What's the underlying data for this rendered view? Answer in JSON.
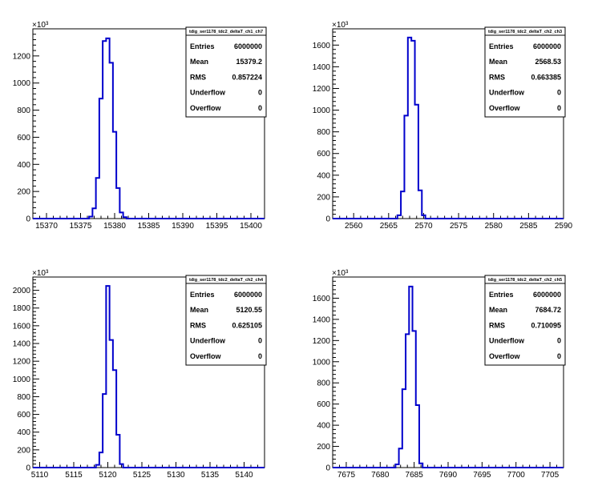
{
  "chart_data": [
    {
      "type": "histogram",
      "title": "tdig_ser1178_tdc2_deltaT_ch1_ch7",
      "xlim": [
        15368,
        15402
      ],
      "ylim": [
        0,
        1400000
      ],
      "x_ticks": [
        15370,
        15375,
        15380,
        15385,
        15390,
        15395,
        15400
      ],
      "y_ticks": [
        0,
        200,
        400,
        600,
        800,
        1000,
        1200
      ],
      "y_multiplier_label": "×10³",
      "bin_width": 0.5,
      "bins": [
        {
          "x": 15376.5,
          "y": 15000
        },
        {
          "x": 15377.0,
          "y": 75000
        },
        {
          "x": 15377.5,
          "y": 300000
        },
        {
          "x": 15378.0,
          "y": 885000
        },
        {
          "x": 15378.5,
          "y": 1310000
        },
        {
          "x": 15379.0,
          "y": 1330000
        },
        {
          "x": 15379.5,
          "y": 1150000
        },
        {
          "x": 15380.0,
          "y": 640000
        },
        {
          "x": 15380.5,
          "y": 225000
        },
        {
          "x": 15381.0,
          "y": 45000
        },
        {
          "x": 15381.5,
          "y": 10000
        }
      ],
      "stats": [
        {
          "label": "Entries",
          "value": "6000000"
        },
        {
          "label": "Mean",
          "value": "15379.2"
        },
        {
          "label": "RMS",
          "value": "0.857224"
        },
        {
          "label": "Underflow",
          "value": "0"
        },
        {
          "label": "Overflow",
          "value": "0"
        }
      ]
    },
    {
      "type": "histogram",
      "title": "tdig_ser1178_tdc2_deltaT_ch2_ch3",
      "xlim": [
        2557,
        2590
      ],
      "ylim": [
        0,
        1750000
      ],
      "x_ticks": [
        2560,
        2565,
        2570,
        2575,
        2580,
        2585,
        2590
      ],
      "y_ticks": [
        0,
        200,
        400,
        600,
        800,
        1000,
        1200,
        1400,
        1600
      ],
      "y_multiplier_label": "×10³",
      "bin_width": 0.5,
      "bins": [
        {
          "x": 2566.5,
          "y": 30000
        },
        {
          "x": 2567.0,
          "y": 250000
        },
        {
          "x": 2567.5,
          "y": 950000
        },
        {
          "x": 2568.0,
          "y": 1670000
        },
        {
          "x": 2568.5,
          "y": 1640000
        },
        {
          "x": 2569.0,
          "y": 1050000
        },
        {
          "x": 2569.5,
          "y": 260000
        },
        {
          "x": 2570.0,
          "y": 30000
        }
      ],
      "stats": [
        {
          "label": "Entries",
          "value": "6000000"
        },
        {
          "label": "Mean",
          "value": "2568.53"
        },
        {
          "label": "RMS",
          "value": "0.663385"
        },
        {
          "label": "Underflow",
          "value": "0"
        },
        {
          "label": "Overflow",
          "value": "0"
        }
      ]
    },
    {
      "type": "histogram",
      "title": "tdig_ser1178_tdc2_deltaT_ch2_ch4",
      "xlim": [
        5109,
        5143
      ],
      "ylim": [
        0,
        2150000
      ],
      "x_ticks": [
        5110,
        5115,
        5120,
        5125,
        5130,
        5135,
        5140
      ],
      "y_ticks": [
        0,
        200,
        400,
        600,
        800,
        1000,
        1200,
        1400,
        1600,
        1800,
        2000
      ],
      "y_multiplier_label": "×10³",
      "bin_width": 0.5,
      "bins": [
        {
          "x": 5118.5,
          "y": 30000
        },
        {
          "x": 5119.0,
          "y": 170000
        },
        {
          "x": 5119.5,
          "y": 830000
        },
        {
          "x": 5120.0,
          "y": 2050000
        },
        {
          "x": 5120.5,
          "y": 1440000
        },
        {
          "x": 5121.0,
          "y": 1100000
        },
        {
          "x": 5121.5,
          "y": 370000
        },
        {
          "x": 5122.0,
          "y": 40000
        }
      ],
      "stats": [
        {
          "label": "Entries",
          "value": "6000000"
        },
        {
          "label": "Mean",
          "value": "5120.55"
        },
        {
          "label": "RMS",
          "value": "0.625105"
        },
        {
          "label": "Underflow",
          "value": "0"
        },
        {
          "label": "Overflow",
          "value": "0"
        }
      ]
    },
    {
      "type": "histogram",
      "title": "tdig_ser1178_tdc2_deltaT_ch2_ch5",
      "xlim": [
        7673,
        7707
      ],
      "ylim": [
        0,
        1800000
      ],
      "x_ticks": [
        7675,
        7680,
        7685,
        7690,
        7695,
        7700,
        7705
      ],
      "y_ticks": [
        0,
        200,
        400,
        600,
        800,
        1000,
        1200,
        1400,
        1600
      ],
      "y_multiplier_label": "×10³",
      "bin_width": 0.5,
      "bins": [
        {
          "x": 7682.5,
          "y": 30000
        },
        {
          "x": 7683.0,
          "y": 180000
        },
        {
          "x": 7683.5,
          "y": 740000
        },
        {
          "x": 7684.0,
          "y": 1260000
        },
        {
          "x": 7684.5,
          "y": 1710000
        },
        {
          "x": 7685.0,
          "y": 1290000
        },
        {
          "x": 7685.5,
          "y": 590000
        },
        {
          "x": 7686.0,
          "y": 40000
        }
      ],
      "stats": [
        {
          "label": "Entries",
          "value": "6000000"
        },
        {
          "label": "Mean",
          "value": "7684.72"
        },
        {
          "label": "RMS",
          "value": "0.710095"
        },
        {
          "label": "Underflow",
          "value": "0"
        },
        {
          "label": "Overflow",
          "value": "0"
        }
      ]
    }
  ],
  "colors": {
    "line": "#0000cc",
    "axis": "#000000",
    "background": "#ffffff"
  }
}
